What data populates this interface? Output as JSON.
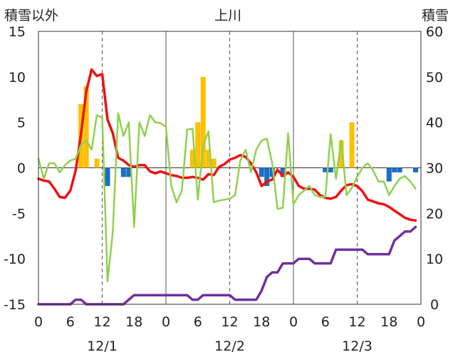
{
  "chart_data": {
    "type": "line",
    "title": "上川",
    "left_axis_title": "積雪以外",
    "right_axis_title": "積雪",
    "y_left": {
      "min": -15,
      "max": 15,
      "ticks": [
        15,
        10,
        5,
        0,
        -5,
        -10,
        -15
      ]
    },
    "y_right": {
      "min": 0,
      "max": 60,
      "ticks": [
        60,
        50,
        40,
        30,
        20,
        10,
        0
      ]
    },
    "x": {
      "min": 0,
      "max": 72,
      "tick_hours": [
        0,
        6,
        12,
        18,
        24,
        30,
        36,
        42,
        48,
        54,
        60,
        66,
        72
      ],
      "tick_labels": [
        "0",
        "6",
        "12",
        "18",
        "0",
        "6",
        "12",
        "18",
        "0",
        "6",
        "12",
        "18",
        "0"
      ]
    },
    "date_labels": [
      {
        "hour": 12,
        "text": "12/1"
      },
      {
        "hour": 36,
        "text": "12/2"
      },
      {
        "hour": 60,
        "text": "12/3"
      }
    ],
    "grid": {
      "dashed_vertical_at_hours": [
        12,
        36,
        60
      ],
      "solid_vertical_at_hours": [
        24,
        48
      ]
    },
    "colors": {
      "red": "#ee1111",
      "green": "#8fd14f",
      "purple": "#7030a0",
      "bar_orange": "#ffc000",
      "bar_blue": "#1a6fc4"
    },
    "series": [
      {
        "color": "red",
        "axis": "left",
        "x": [
          0,
          1,
          2,
          3,
          4,
          5,
          6,
          7,
          8,
          9,
          10,
          11,
          12,
          13,
          14,
          15,
          16,
          17,
          18,
          19,
          20,
          21,
          22,
          23,
          24,
          25,
          26,
          27,
          28,
          29,
          30,
          31,
          32,
          33,
          34,
          35,
          36,
          37,
          38,
          39,
          40,
          41,
          42,
          43,
          44,
          45,
          46,
          47,
          48,
          49,
          50,
          51,
          52,
          53,
          54,
          55,
          56,
          57,
          58,
          59,
          60,
          61,
          62,
          63,
          64,
          65,
          66,
          67,
          68,
          69,
          70,
          71
        ],
        "y": [
          -1.2,
          -1.4,
          -1.5,
          -2.3,
          -3.2,
          -3.3,
          -2.5,
          -0.3,
          3.7,
          8.4,
          10.8,
          10.1,
          10.3,
          5.3,
          3.8,
          1.1,
          0.8,
          0.3,
          0.1,
          0.3,
          0.3,
          -0.4,
          -0.6,
          -0.4,
          -0.6,
          -0.8,
          -0.9,
          -1.1,
          -1.1,
          -1.0,
          -1.1,
          -1.3,
          -0.7,
          -0.8,
          0.1,
          0.4,
          0.9,
          1.1,
          1.4,
          1.2,
          0.5,
          -0.5,
          -2.0,
          -1.5,
          -1.3,
          -0.2,
          -0.9,
          -0.5,
          -1.0,
          -2.0,
          -2.3,
          -2.3,
          -2.4,
          -3.0,
          -3.3,
          -3.4,
          -3.2,
          -2.5,
          -1.9,
          -1.8,
          -2.0,
          -2.6,
          -3.5,
          -3.7,
          -3.9,
          -4.0,
          -4.3,
          -4.7,
          -5.1,
          -5.5,
          -5.7,
          -5.8
        ]
      },
      {
        "color": "green",
        "axis": "left",
        "x": [
          0,
          1,
          2,
          3,
          4,
          5,
          6,
          7,
          8,
          9,
          10,
          11,
          12,
          13,
          14,
          15,
          16,
          17,
          18,
          19,
          20,
          21,
          22,
          23,
          24,
          25,
          26,
          27,
          28,
          29,
          30,
          31,
          32,
          33,
          34,
          35,
          36,
          37,
          38,
          39,
          40,
          41,
          42,
          43,
          44,
          45,
          46,
          47,
          48,
          49,
          50,
          51,
          52,
          53,
          54,
          55,
          56,
          57,
          58,
          59,
          60,
          61,
          62,
          63,
          64,
          65,
          66,
          67,
          68,
          69,
          70,
          71
        ],
        "y": [
          1.0,
          -1.2,
          0.5,
          0.5,
          -0.5,
          0.3,
          0.8,
          1.0,
          2.5,
          3.0,
          2.0,
          5.8,
          5.5,
          -12.5,
          -7.0,
          6.0,
          3.5,
          5.0,
          -6.5,
          5.0,
          3.5,
          5.8,
          5.0,
          4.9,
          4.5,
          -2.0,
          -3.8,
          -2.5,
          4.2,
          4.3,
          -3.5,
          2.5,
          4.0,
          -3.8,
          -3.6,
          -3.5,
          -3.4,
          -3.0,
          0.8,
          2.0,
          -0.5,
          2.0,
          3.0,
          3.2,
          0.5,
          -4.5,
          -4.4,
          3.8,
          -4.0,
          -3.0,
          -2.5,
          -2.0,
          -3.0,
          -3.2,
          -3.2,
          3.7,
          -1.2,
          3.0,
          -3.0,
          -2.2,
          -1.0,
          0.0,
          0.5,
          -0.3,
          -1.5,
          -1.5,
          -3.0,
          -2.0,
          -1.2,
          -0.9,
          -1.5,
          -2.3
        ]
      },
      {
        "color": "purple",
        "axis": "right",
        "x": [
          0,
          1,
          2,
          3,
          4,
          5,
          6,
          7,
          8,
          9,
          10,
          11,
          12,
          13,
          14,
          15,
          16,
          17,
          18,
          19,
          20,
          21,
          22,
          23,
          24,
          25,
          26,
          27,
          28,
          29,
          30,
          31,
          32,
          33,
          34,
          35,
          36,
          37,
          38,
          39,
          40,
          41,
          42,
          43,
          44,
          45,
          46,
          47,
          48,
          49,
          50,
          51,
          52,
          53,
          54,
          55,
          56,
          57,
          58,
          59,
          60,
          61,
          62,
          63,
          64,
          65,
          66,
          67,
          68,
          69,
          70,
          71
        ],
        "y": [
          0,
          0,
          0,
          0,
          0,
          0,
          0,
          1,
          1,
          0,
          0,
          0,
          0,
          0,
          0,
          0,
          0,
          1,
          2,
          2,
          2,
          2,
          2,
          2,
          2,
          2,
          2,
          2,
          2,
          1,
          1,
          2,
          2,
          2,
          2,
          2,
          2,
          1,
          1,
          1,
          1,
          1,
          3,
          6,
          7,
          7,
          9,
          9,
          9,
          10,
          10,
          10,
          9,
          9,
          9,
          9,
          12,
          12,
          12,
          12,
          12,
          12,
          11,
          11,
          11,
          11,
          11,
          14,
          15,
          16,
          16,
          17
        ]
      }
    ],
    "bars": {
      "axis": "left",
      "orange": [
        {
          "x": 8,
          "value": 7.0
        },
        {
          "x": 9,
          "value": 9.0
        },
        {
          "x": 11,
          "value": 1.0
        },
        {
          "x": 29,
          "value": 2.0
        },
        {
          "x": 30,
          "value": 5.0
        },
        {
          "x": 31,
          "value": 10.0
        },
        {
          "x": 32,
          "value": 2.0
        },
        {
          "x": 33,
          "value": 1.0
        },
        {
          "x": 57,
          "value": 3.0
        },
        {
          "x": 59,
          "value": 5.0
        }
      ],
      "blue": [
        {
          "x": 13,
          "value": -2.0
        },
        {
          "x": 16,
          "value": -1.0
        },
        {
          "x": 17,
          "value": -1.0
        },
        {
          "x": 42,
          "value": -1.0
        },
        {
          "x": 43,
          "value": -2.0
        },
        {
          "x": 44,
          "value": -1.0
        },
        {
          "x": 46,
          "value": -1.0
        },
        {
          "x": 54,
          "value": -0.5
        },
        {
          "x": 55,
          "value": -0.5
        },
        {
          "x": 66,
          "value": -1.5
        },
        {
          "x": 67,
          "value": -0.5
        },
        {
          "x": 68,
          "value": -0.5
        },
        {
          "x": 71,
          "value": -0.5
        }
      ]
    }
  }
}
